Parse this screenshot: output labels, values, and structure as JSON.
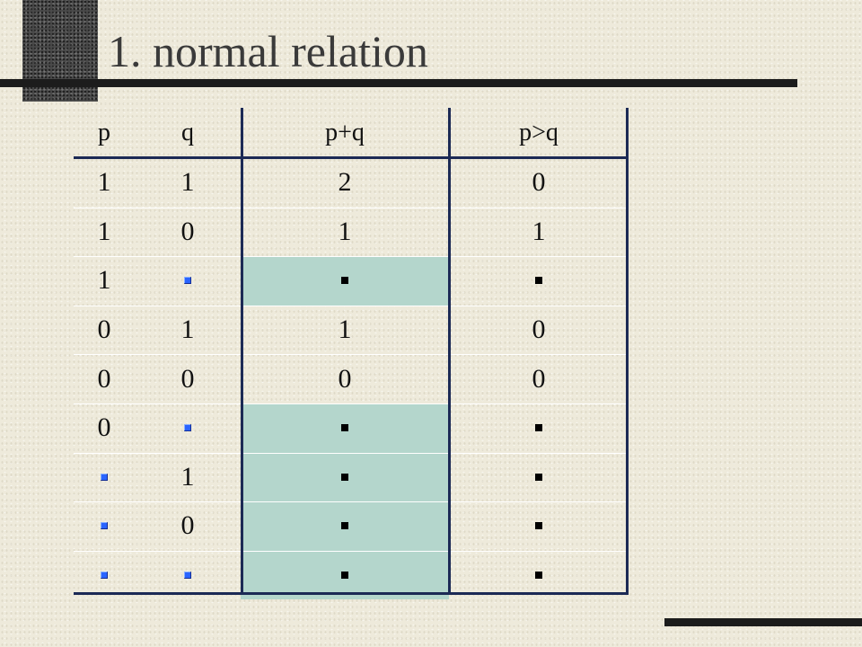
{
  "slide": {
    "title": "1. normal relation"
  },
  "table": {
    "headers": [
      "p",
      "q",
      "p+q",
      "p>q"
    ],
    "rows": [
      [
        "1",
        "1",
        "2",
        "0"
      ],
      [
        "1",
        "0",
        "1",
        "1"
      ],
      [
        "1",
        "null",
        "null",
        "null"
      ],
      [
        "0",
        "1",
        "1",
        "0"
      ],
      [
        "0",
        "0",
        "0",
        "0"
      ],
      [
        "0",
        "null",
        "null",
        "null"
      ],
      [
        "null",
        "1",
        "null",
        "null"
      ],
      [
        "null",
        "0",
        "null",
        "null"
      ],
      [
        "null",
        "null",
        "null",
        "null"
      ]
    ],
    "null_marker_colors": {
      "input": "#2a64ff",
      "result": "#000000"
    },
    "shade_color": "#b4d6cc"
  }
}
